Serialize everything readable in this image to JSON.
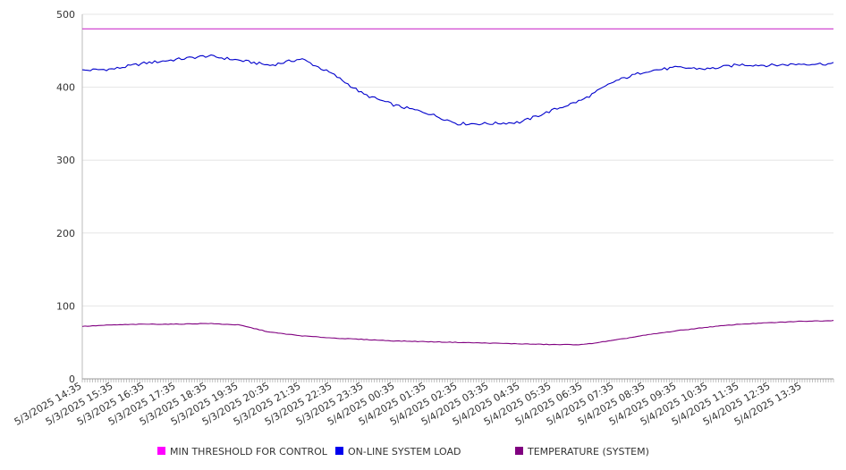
{
  "chart_data": {
    "type": "line",
    "ylim": [
      0,
      500
    ],
    "yticks": [
      0,
      100,
      200,
      300,
      400,
      500
    ],
    "grid": true,
    "legend_position": "bottom",
    "x_tick_labels": [
      "5/3/2025 14:35",
      "5/3/2025 15:35",
      "5/3/2025 16:35",
      "5/3/2025 17:35",
      "5/3/2025 18:35",
      "5/3/2025 19:35",
      "5/3/2025 20:35",
      "5/3/2025 21:35",
      "5/3/2025 22:35",
      "5/3/2025 23:35",
      "5/4/2025 00:35",
      "5/4/2025 01:35",
      "5/4/2025 02:35",
      "5/4/2025 03:35",
      "5/4/2025 04:35",
      "5/4/2025 05:35",
      "5/4/2025 06:35",
      "5/4/2025 07:35",
      "5/4/2025 08:35",
      "5/4/2025 09:35",
      "5/4/2025 10:35",
      "5/4/2025 11:35",
      "5/4/2025 12:35",
      "5/4/2025 13:35"
    ],
    "x": [
      "14:35",
      "15:35",
      "16:35",
      "17:35",
      "18:35",
      "19:35",
      "20:35",
      "21:35",
      "22:35",
      "23:35",
      "00:35",
      "01:35",
      "02:35",
      "03:35",
      "04:35",
      "05:35",
      "06:35",
      "07:35",
      "08:35",
      "09:35",
      "10:35",
      "11:35",
      "12:35",
      "13:35",
      "14:35"
    ],
    "series": [
      {
        "name": "MIN THRESHOLD FOR CONTROL",
        "color": "#cc33cc",
        "values": [
          480,
          480,
          480,
          480,
          480,
          480,
          480,
          480,
          480,
          480,
          480,
          480,
          480,
          480,
          480,
          480,
          480,
          480,
          480,
          480,
          480,
          480,
          480,
          480,
          480
        ]
      },
      {
        "name": "ON-LINE SYSTEM LOAD",
        "color": "#0000cc",
        "values": [
          423,
          425,
          433,
          438,
          443,
          437,
          430,
          439,
          418,
          390,
          375,
          365,
          350,
          350,
          352,
          368,
          383,
          408,
          422,
          427,
          425,
          431,
          430,
          432,
          432
        ]
      },
      {
        "name": "TEMPERATURE (SYSTEM)",
        "color": "#800080",
        "values": [
          72,
          74,
          75,
          75,
          76,
          74,
          64,
          59,
          56,
          54,
          52,
          51,
          50,
          49,
          48,
          47,
          47,
          53,
          60,
          66,
          71,
          75,
          77,
          79,
          80
        ]
      }
    ],
    "legend_swatch_colors": [
      "#ff00ff",
      "#0000ee",
      "#800080"
    ]
  }
}
